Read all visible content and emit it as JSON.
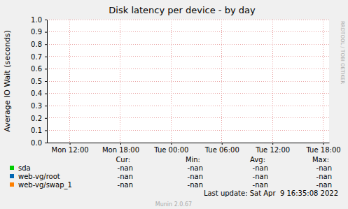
{
  "chart_data": {
    "type": "line",
    "title": "Disk latency per device - by day",
    "y_label": "Average IO Wait (seconds)",
    "xlim": [
      9.3,
      42.7
    ],
    "xticks": [
      {
        "value": 12,
        "label": "Mon 12:00"
      },
      {
        "value": 18,
        "label": "Mon 18:00"
      },
      {
        "value": 24,
        "label": "Tue 00:00"
      },
      {
        "value": 30,
        "label": "Tue 06:00"
      },
      {
        "value": 36,
        "label": "Tue 12:00"
      },
      {
        "value": 42,
        "label": "Tue 18:00"
      }
    ],
    "ylim": [
      0,
      1
    ],
    "yticks": [
      {
        "value": 0,
        "label": "0.0"
      },
      0.1,
      0.2,
      0.3,
      0.4,
      0.5,
      0.6,
      0.7,
      0.8,
      0.9,
      {
        "value": 1,
        "label": "1.0"
      }
    ],
    "grid": true,
    "stat_headers": [
      "Cur:",
      "Min:",
      "Avg:",
      "Max:"
    ],
    "series": [
      {
        "name": "sda",
        "color": "#00cc00",
        "x": [],
        "values": [],
        "stats": [
          "-nan",
          "-nan",
          "-nan",
          "-nan"
        ]
      },
      {
        "name": "web-vg/root",
        "color": "#0066b3",
        "x": [],
        "values": [],
        "stats": [
          "-nan",
          "-nan",
          "-nan",
          "-nan"
        ]
      },
      {
        "name": "web-vg/swap_1",
        "color": "#ff8000",
        "x": [],
        "values": [],
        "stats": [
          "-nan",
          "-nan",
          "-nan",
          "-nan"
        ]
      }
    ],
    "last_update": "Last update: Sat Apr  9 16:35:08 2022",
    "footer": "Munin 2.0.67",
    "side_text": "RRDTOOL / TOBI OETIKER"
  }
}
